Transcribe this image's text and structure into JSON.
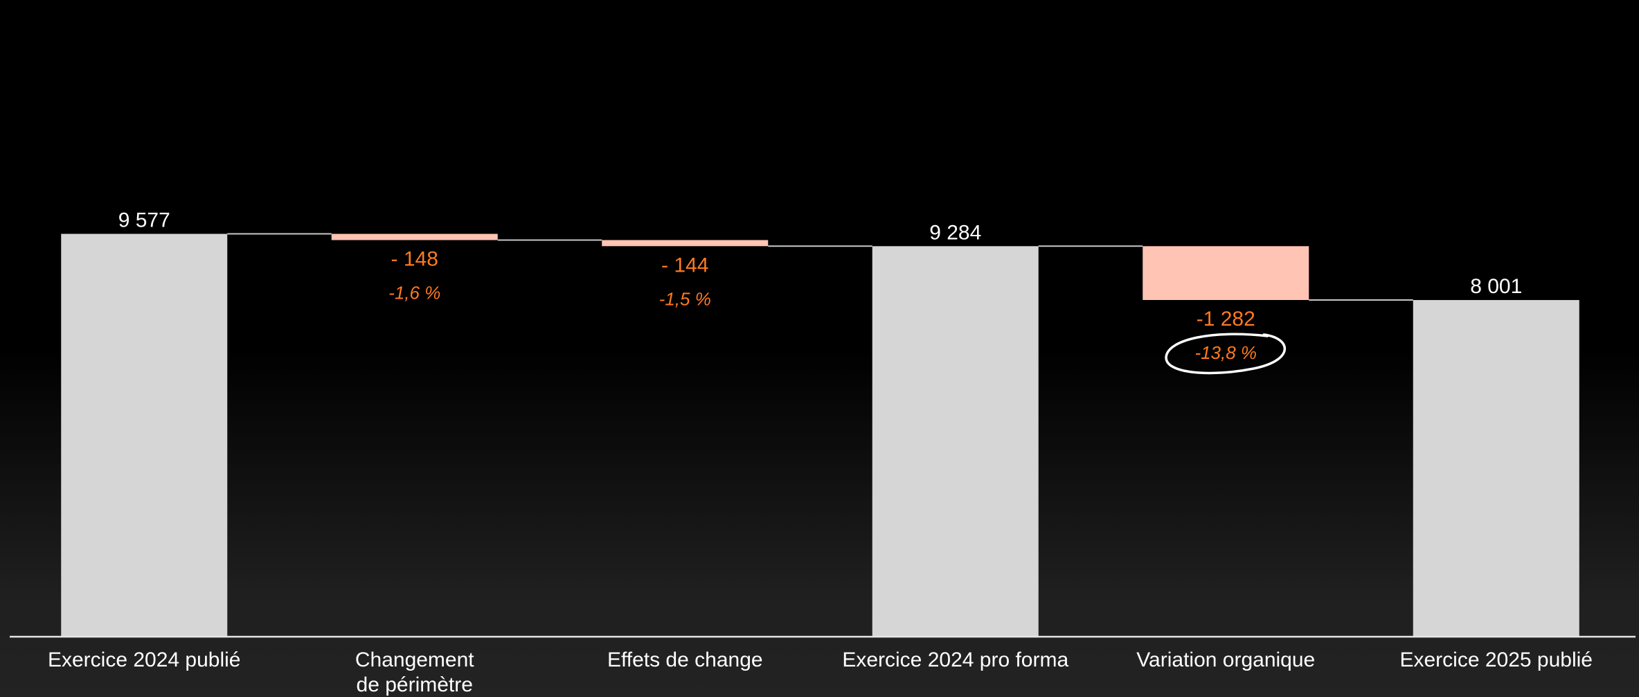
{
  "chart_data": {
    "type": "bar",
    "subtype": "waterfall",
    "title": "",
    "xlabel": "",
    "ylabel": "",
    "ylim": [
      0,
      9700
    ],
    "grid": false,
    "legend": "none",
    "colors": {
      "total": "#d6d6d6",
      "decrease": "#ffc4b3",
      "value_label_total": "#ffffff",
      "value_label_delta": "#ff7a21",
      "background": "#000000",
      "connector": "#c8c8c8",
      "highlight_circle": "#ffffff"
    },
    "bars": [
      {
        "category": [
          "Exercice 2024 publié"
        ],
        "kind": "total",
        "start": 0,
        "end": 9577,
        "value_label": "9 577",
        "pct_label": ""
      },
      {
        "category": [
          "Changement",
          "de périmètre"
        ],
        "kind": "delta",
        "start": 9577,
        "end": 9429,
        "value_label": "- 148",
        "pct_label": "-1,6 %"
      },
      {
        "category": [
          "Effets de change"
        ],
        "kind": "delta",
        "start": 9429,
        "end": 9284,
        "value_label": "- 144",
        "pct_label": "-1,5 %"
      },
      {
        "category": [
          "Exercice 2024 pro forma"
        ],
        "kind": "total",
        "start": 0,
        "end": 9284,
        "value_label": "9 284",
        "pct_label": ""
      },
      {
        "category": [
          "Variation organique"
        ],
        "kind": "delta",
        "start": 9284,
        "end": 8002,
        "value_label": "-1 282",
        "pct_label": "-13,8 %",
        "highlight": true
      },
      {
        "category": [
          "Exercice 2025 publié"
        ],
        "kind": "total",
        "start": 0,
        "end": 8001,
        "value_label": "8 001",
        "pct_label": ""
      }
    ]
  }
}
